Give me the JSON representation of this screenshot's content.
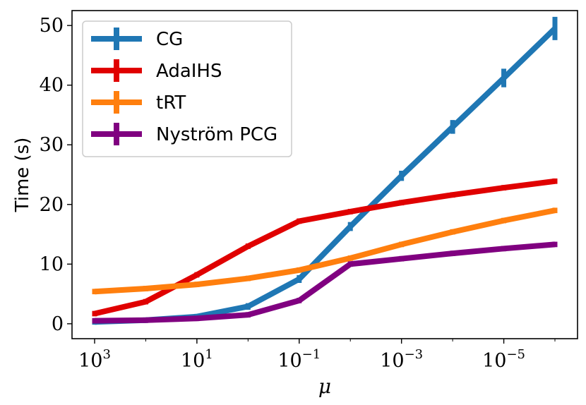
{
  "chart_data": {
    "type": "line",
    "title": "",
    "xlabel": "μ",
    "ylabel": "Time (s)",
    "x_scale": "log",
    "x_reversed": true,
    "x": [
      1000,
      100,
      10,
      1,
      0.1,
      0.01,
      0.001,
      0.0001,
      1e-05,
      1e-06
    ],
    "xticks": [
      {
        "value": 1000,
        "base": "10",
        "exp": "3"
      },
      {
        "value": 10,
        "base": "10",
        "exp": "1"
      },
      {
        "value": 0.1,
        "base": "10",
        "exp": "−1"
      },
      {
        "value": 0.001,
        "base": "10",
        "exp": "−3"
      },
      {
        "value": 1e-05,
        "base": "10",
        "exp": "−5"
      }
    ],
    "ylim": [
      -2.5,
      52.5
    ],
    "yticks": [
      0,
      10,
      20,
      30,
      40,
      50
    ],
    "grid": false,
    "legend_position": "top-left",
    "series": [
      {
        "name": "CG",
        "color": "#1f77b4",
        "error_bars": true,
        "values": [
          0.3,
          0.6,
          1.2,
          2.9,
          7.5,
          16.3,
          24.8,
          33.0,
          41.2,
          49.5
        ],
        "errors": [
          0.1,
          0.1,
          0.1,
          0.2,
          0.3,
          0.4,
          0.5,
          0.8,
          1.2,
          1.6
        ]
      },
      {
        "name": "AdaIHS",
        "color": "#e00000",
        "error_bars": true,
        "values": [
          1.7,
          3.7,
          8.2,
          13.0,
          17.2,
          18.8,
          20.3,
          21.6,
          22.8,
          23.9
        ],
        "errors": [
          0.1,
          0.1,
          0.1,
          0.1,
          0.1,
          0.1,
          0.1,
          0.1,
          0.1,
          0.1
        ]
      },
      {
        "name": "tRT",
        "color": "#ff7f0e",
        "error_bars": true,
        "values": [
          5.4,
          5.9,
          6.6,
          7.6,
          9.0,
          11.0,
          13.3,
          15.4,
          17.3,
          19.0
        ],
        "errors": [
          0.1,
          0.1,
          0.1,
          0.1,
          0.1,
          0.1,
          0.1,
          0.1,
          0.1,
          0.1
        ]
      },
      {
        "name": "Nyström PCG",
        "color": "#800080",
        "error_bars": true,
        "values": [
          0.5,
          0.6,
          0.9,
          1.5,
          3.9,
          10.0,
          10.9,
          11.8,
          12.6,
          13.3
        ],
        "errors": [
          0.1,
          0.1,
          0.1,
          0.1,
          0.1,
          0.1,
          0.1,
          0.1,
          0.1,
          0.1
        ]
      }
    ]
  }
}
